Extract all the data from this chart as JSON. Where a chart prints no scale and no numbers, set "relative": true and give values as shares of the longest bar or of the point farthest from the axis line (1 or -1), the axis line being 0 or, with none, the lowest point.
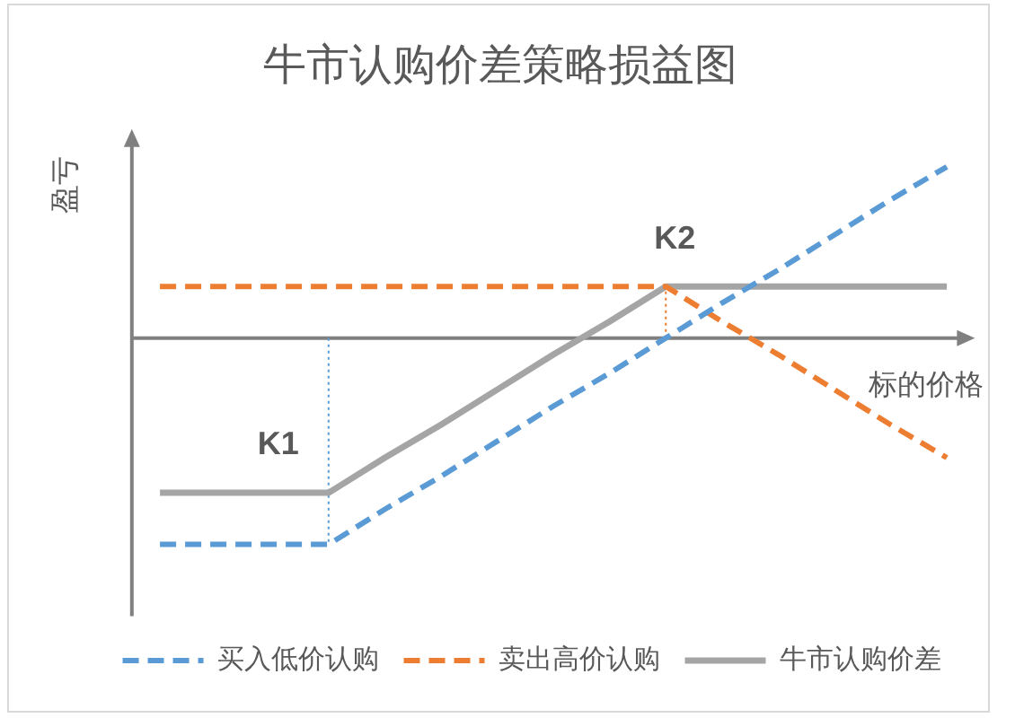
{
  "chart_data": {
    "type": "line",
    "title": "牛市认购价差策略损益图",
    "xlabel": "标的价格",
    "ylabel": "盈亏",
    "relative": true,
    "categories": [
      null,
      null,
      null,
      null,
      null,
      null,
      null,
      null,
      null,
      null,
      null,
      null,
      null,
      null,
      null
    ],
    "series": [
      {
        "name": "买入低价认购",
        "color": "#5b9bd5",
        "line_style": "dashed",
        "values": [
          -1,
          -1,
          -1,
          -1,
          -0.83,
          -0.67,
          -0.5,
          -0.33,
          -0.17,
          0,
          0.17,
          0.33,
          0.5,
          0.67,
          0.83
        ]
      },
      {
        "name": "卖出高价认购",
        "color": "#ed7d31",
        "line_style": "dashed",
        "values": [
          0.25,
          0.25,
          0.25,
          0.25,
          0.25,
          0.25,
          0.25,
          0.25,
          0.25,
          0.25,
          0.08,
          -0.08,
          -0.25,
          -0.42,
          -0.58
        ]
      },
      {
        "name": "牛市认购价差",
        "color": "#a5a5a5",
        "line_style": "solid",
        "values": [
          -0.75,
          -0.75,
          -0.75,
          -0.75,
          -0.58,
          -0.42,
          -0.25,
          -0.08,
          0.08,
          0.25,
          0.25,
          0.25,
          0.25,
          0.25,
          0.25
        ]
      }
    ],
    "annotations": [
      {
        "text": "K1",
        "y": -1
      },
      {
        "text": "K2",
        "y": 0.25
      }
    ],
    "legend": "bottom"
  }
}
